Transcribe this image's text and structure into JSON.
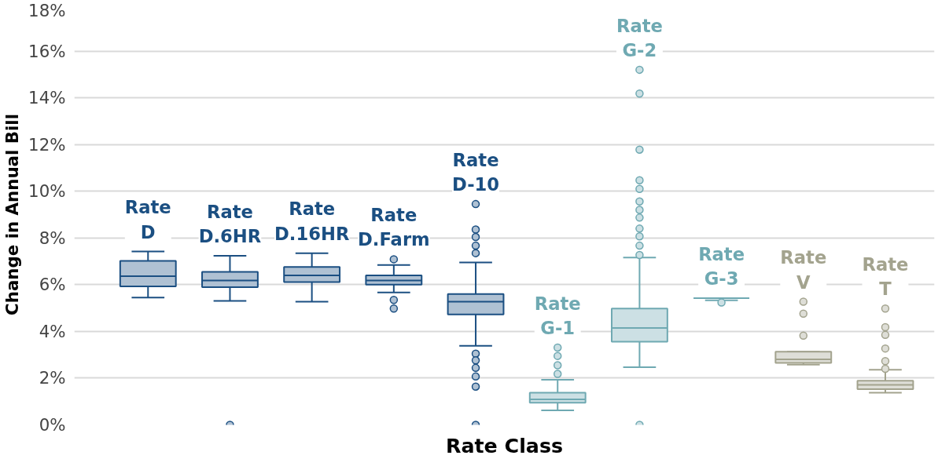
{
  "chart_data": {
    "type": "box",
    "xlabel": "Rate Class",
    "ylabel": "Change in Annual Bill",
    "categories": [
      "Rate D",
      "Rate D.6HR",
      "Rate D.16HR",
      "Rate D.Farm",
      "Rate D-10",
      "Rate G-1",
      "Rate G-2",
      "Rate G-3",
      "Rate V",
      "Rate T"
    ],
    "colors": [
      "#1b4f82",
      "#1b4f82",
      "#1b4f82",
      "#1b4f82",
      "#1b4f82",
      "#6fa9b2",
      "#6fa9b2",
      "#6fa9b2",
      "#a3a38e",
      "#a3a38e"
    ],
    "boxes": [
      {
        "low": 5.45,
        "q1": 5.93,
        "median": 6.36,
        "q3": 7.02,
        "high": 7.42
      },
      {
        "low": 5.31,
        "q1": 5.89,
        "median": 6.18,
        "q3": 6.55,
        "high": 7.24,
        "outliers": [
          0
        ]
      },
      {
        "low": 5.27,
        "q1": 6.11,
        "median": 6.4,
        "q3": 6.76,
        "high": 7.35
      },
      {
        "low": 5.67,
        "q1": 6.0,
        "median": 6.18,
        "q3": 6.4,
        "high": 6.84,
        "outliers": [
          7.09,
          5.35,
          4.98
        ]
      },
      {
        "low": 3.38,
        "q1": 4.73,
        "median": 5.27,
        "q3": 5.6,
        "high": 6.95,
        "outliers": [
          9.45,
          8.36,
          8.04,
          7.67,
          7.35,
          3.05,
          2.76,
          2.44,
          2.07,
          1.64,
          0
        ]
      },
      {
        "low": 0.62,
        "q1": 0.95,
        "median": 1.09,
        "q3": 1.38,
        "high": 1.93,
        "outliers": [
          2.18,
          2.55,
          2.95,
          3.31
        ]
      },
      {
        "low": 2.47,
        "q1": 3.56,
        "median": 4.15,
        "q3": 4.98,
        "high": 7.16,
        "outliers": [
          15.2,
          14.18,
          11.78,
          10.47,
          10.1,
          9.56,
          9.2,
          8.87,
          8.4,
          8.07,
          7.67,
          7.27,
          0
        ]
      },
      {
        "low": 5.33,
        "q1": 5.42,
        "median": 5.42,
        "q3": 5.42,
        "high": 5.42,
        "outliers": [
          5.24
        ]
      },
      {
        "low": 2.58,
        "q1": 2.65,
        "median": 2.8,
        "q3": 3.13,
        "high": 3.13,
        "outliers": [
          5.27,
          4.76,
          3.82
        ]
      },
      {
        "low": 1.38,
        "q1": 1.53,
        "median": 1.71,
        "q3": 1.89,
        "high": 2.36,
        "outliers": [
          4.98,
          4.18,
          3.85,
          3.27,
          2.73,
          2.4
        ]
      }
    ],
    "ylim": [
      0,
      18
    ],
    "yticks": [
      {
        "value": 0,
        "label": "0%"
      },
      {
        "value": 2,
        "label": "2%"
      },
      {
        "value": 4,
        "label": "4%"
      },
      {
        "value": 6,
        "label": "6%"
      },
      {
        "value": 8,
        "label": "8%"
      },
      {
        "value": 10,
        "label": "10%"
      },
      {
        "value": 12,
        "label": "12%"
      },
      {
        "value": 14,
        "label": "14%"
      },
      {
        "value": 16,
        "label": "16%"
      },
      {
        "value": 18,
        "label": "18%"
      }
    ],
    "grid": "y",
    "tick_labels": "y"
  }
}
